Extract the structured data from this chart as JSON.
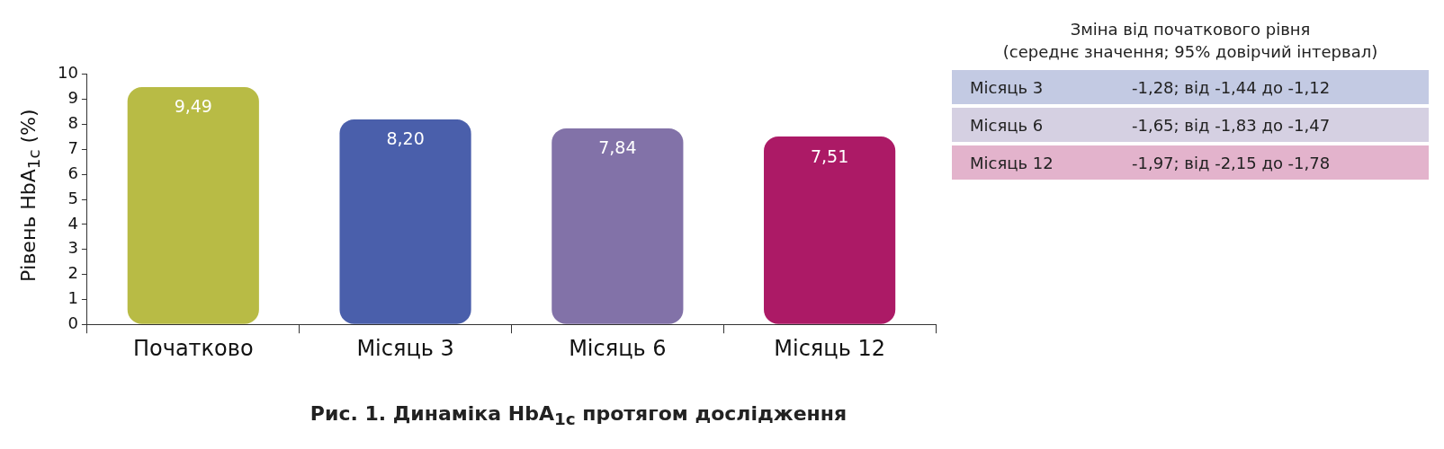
{
  "chart_data": {
    "type": "bar",
    "title": "Рис. 1. Динаміка HbA$_{1c}$ протягом дослідження",
    "ylabel": "Рівень HbA$_{1c}$ (%)",
    "categories": [
      "Початково",
      "Місяць 3",
      "Місяць 6",
      "Місяць 12"
    ],
    "values": [
      9.49,
      8.2,
      7.84,
      7.51
    ],
    "colors": [
      "#b8bb45",
      "#4a5fab",
      "#8272a8",
      "#ac1a66"
    ],
    "ylim": [
      0,
      10
    ],
    "yticks": [
      0,
      1,
      2,
      3,
      4,
      5,
      6,
      7,
      8,
      9,
      10
    ],
    "value_labels": [
      "9,49",
      "8,20",
      "7,84",
      "7,51"
    ],
    "grid": false,
    "legend": false,
    "annotations": [
      "Зміна від початкового рівня\n(середнє значення; 95% довірчий інтервал)",
      "Місяць 3",
      "-1,28; від -1,44 до -1,12",
      "Місяць 6",
      "-1,65; від -1,83 до -1,47",
      "Місяць 12",
      "-1,97; від -2,15 до -1,78"
    ]
  }
}
